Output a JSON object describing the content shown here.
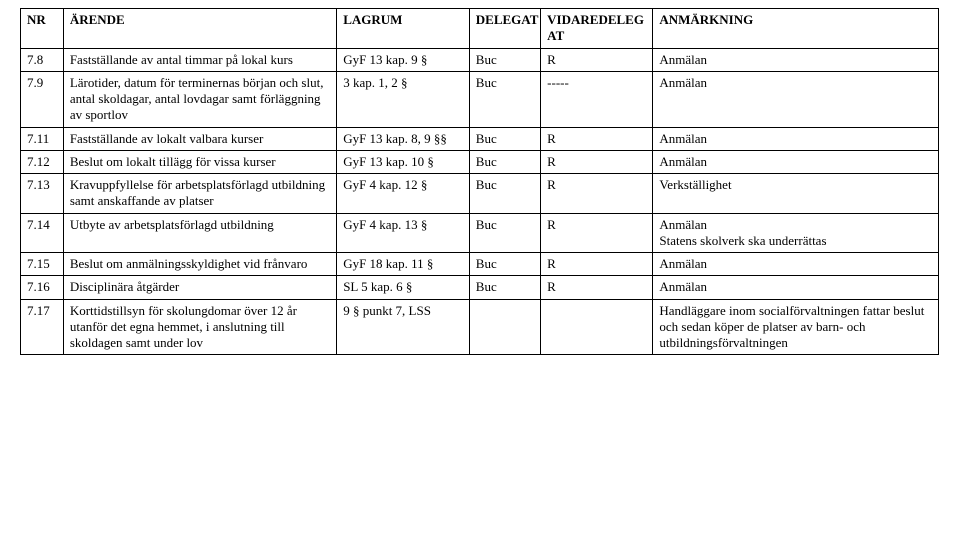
{
  "columns": [
    "NR",
    "ÄRENDE",
    "LAGRUM",
    "DELEGAT",
    "VIDAREDELEG AT",
    "ANMÄRKNING"
  ],
  "rows": [
    {
      "nr": "7.8",
      "arende": "Fastställande av antal timmar på lokal kurs",
      "lagrum": "GyF 13 kap. 9 §",
      "delegat": "Buc",
      "vidare": "R",
      "anm": "Anmälan"
    },
    {
      "nr": "7.9",
      "arende": "Lärotider, datum för terminernas början och slut, antal skoldagar, antal lovdagar samt förläggning av sportlov",
      "lagrum": "3 kap. 1, 2 §",
      "delegat": "Buc",
      "vidare": "-----",
      "anm": "Anmälan"
    },
    {
      "nr": "7.11",
      "arende": "Fastställande av lokalt valbara kurser",
      "lagrum": "GyF 13 kap. 8, 9 §§",
      "delegat": "Buc",
      "vidare": "R",
      "anm": "Anmälan"
    },
    {
      "nr": "7.12",
      "arende": "Beslut om lokalt tillägg för vissa kurser",
      "lagrum": "GyF 13 kap. 10 §",
      "delegat": "Buc",
      "vidare": "R",
      "anm": "Anmälan"
    },
    {
      "nr": "7.13",
      "arende": "Kravuppfyllelse för arbetsplatsförlagd utbildning samt anskaffande av platser",
      "lagrum": "GyF 4 kap. 12 §",
      "delegat": "Buc",
      "vidare": "R",
      "anm": "Verkställighet"
    },
    {
      "nr": "7.14",
      "arende": "Utbyte av arbetsplatsförlagd utbildning",
      "lagrum": "GyF 4 kap. 13 §",
      "delegat": "Buc",
      "vidare": "R",
      "anm": "Anmälan\nStatens skolverk ska underrättas"
    },
    {
      "nr": "7.15",
      "arende": "Beslut om anmälningsskyldighet vid frånvaro",
      "lagrum": "GyF 18 kap. 11 §",
      "delegat": "Buc",
      "vidare": "R",
      "anm": "Anmälan"
    },
    {
      "nr": "7.16",
      "arende": "Disciplinära åtgärder",
      "lagrum": "SL 5 kap. 6 §",
      "delegat": "Buc",
      "vidare": "R",
      "anm": "Anmälan"
    },
    {
      "nr": "7.17",
      "arende": "Korttidstillsyn för skolungdomar över 12 år utanför det egna hemmet, i anslutning till skoldagen samt under lov",
      "lagrum": "9 § punkt 7, LSS",
      "delegat": "",
      "vidare": "",
      "anm": "Handläggare inom socialförvaltningen fattar beslut och sedan köper de platser av barn- och utbildningsförvaltningen"
    }
  ]
}
